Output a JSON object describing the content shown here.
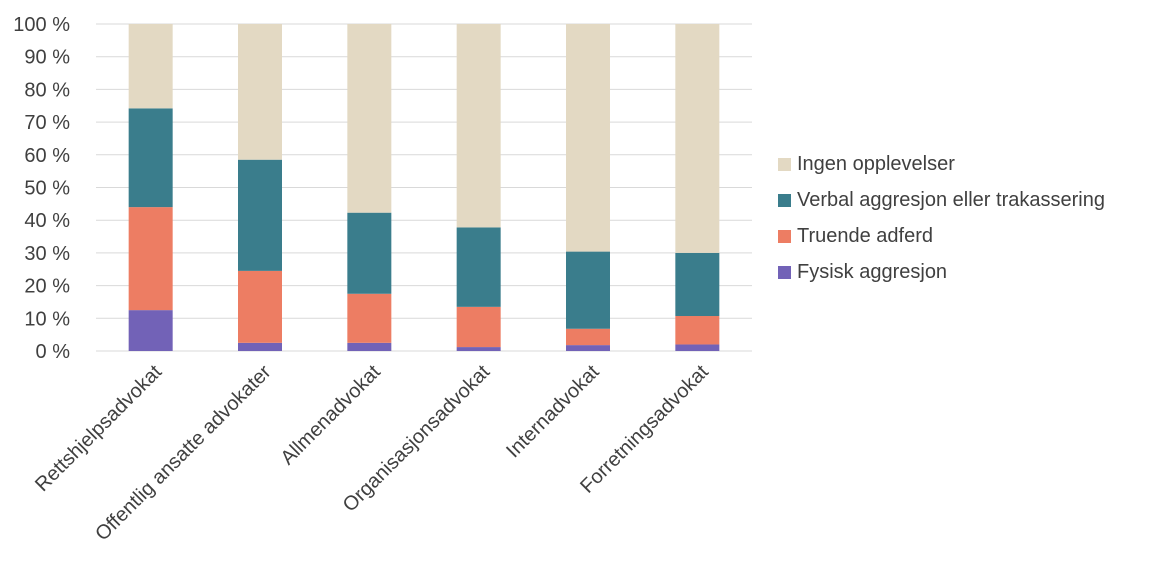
{
  "chart_data": {
    "type": "bar",
    "stacked": true,
    "categories": [
      "Rettshjelpsadvokat",
      "Offentlig ansatte advokater",
      "Allmenadvokat",
      "Organisasjonsadvokat",
      "Internadvokat",
      "Forretningsadvokat"
    ],
    "series": [
      {
        "name": "Fysisk aggresjon",
        "color": "#7262b7",
        "values": [
          12.5,
          2.5,
          2.5,
          1.2,
          1.8,
          2.0
        ]
      },
      {
        "name": "Truende adferd",
        "color": "#ed7d63",
        "values": [
          31.5,
          22.0,
          15.0,
          12.3,
          5.0,
          8.7
        ]
      },
      {
        "name": "Verbal aggresjon eller trakassering",
        "color": "#3a7d8c",
        "values": [
          30.2,
          34.0,
          24.8,
          24.3,
          23.6,
          19.3
        ]
      },
      {
        "name": "Ingen opplevelser",
        "color": "#e3d9c3",
        "values": [
          25.8,
          41.5,
          57.7,
          62.2,
          69.6,
          70.0
        ]
      }
    ],
    "legend_order": [
      "Ingen opplevelser",
      "Verbal aggresjon eller trakassering",
      "Truende adferd",
      "Fysisk aggresjon"
    ],
    "y_ticks": [
      "0 %",
      "10 %",
      "20 %",
      "30 %",
      "40 %",
      "50 %",
      "60 %",
      "70 %",
      "80 %",
      "90 %",
      "100 %"
    ],
    "ylim": [
      0,
      100
    ],
    "legend_position": "right",
    "grid": true,
    "grid_color": "#d9d9d9",
    "text_color": "#404040"
  }
}
